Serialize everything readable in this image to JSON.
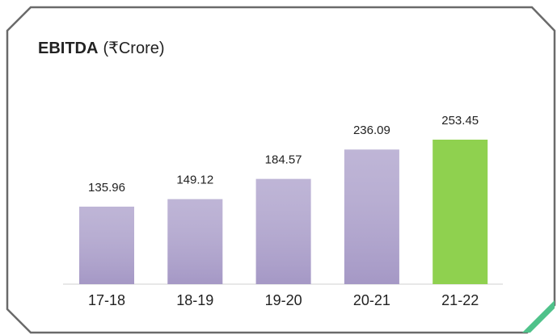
{
  "chart_data": {
    "type": "bar",
    "title": "EBITDA",
    "subtitle": "(₹Crore)",
    "categories": [
      "17-18",
      "18-19",
      "19-20",
      "20-21",
      "21-22"
    ],
    "values": [
      135.96,
      149.12,
      184.57,
      236.09,
      253.45
    ],
    "colors": [
      "#b3a8cf",
      "#b3a8cf",
      "#b3a8cf",
      "#b3a8cf",
      "#8fd14f"
    ]
  }
}
